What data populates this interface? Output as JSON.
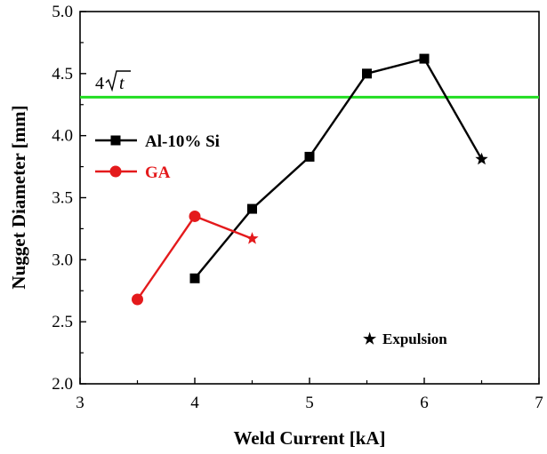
{
  "chart_data": {
    "type": "line",
    "xlabel": "Weld Current [kA]",
    "ylabel": "Nugget Diameter [mm]",
    "xlim": [
      3,
      7
    ],
    "ylim": [
      2.0,
      5.0
    ],
    "xticks": [
      "3",
      "4",
      "5",
      "6",
      "7"
    ],
    "yticks": [
      "2.0",
      "2.5",
      "3.0",
      "3.5",
      "4.0",
      "4.5",
      "5.0"
    ],
    "grid": false,
    "legend_position": "left",
    "series": [
      {
        "name": "Al-10% Si",
        "color": "#000000",
        "marker": "square",
        "x": [
          4.0,
          4.5,
          5.0,
          5.5,
          6.0,
          6.5
        ],
        "y": [
          2.85,
          3.41,
          3.83,
          4.5,
          4.62,
          3.81
        ],
        "expulsion": [
          false,
          false,
          false,
          false,
          false,
          true
        ]
      },
      {
        "name": "GA",
        "color": "#e41a1c",
        "marker": "circle",
        "x": [
          3.5,
          4.0,
          4.5
        ],
        "y": [
          2.68,
          3.35,
          3.17
        ],
        "expulsion": [
          false,
          false,
          true
        ]
      }
    ],
    "reference_line": {
      "label_prefix": "4",
      "label_var": "t",
      "y": 4.31,
      "color": "#22dd22"
    },
    "annotation": {
      "symbol": "★",
      "text": "Expulsion"
    }
  }
}
